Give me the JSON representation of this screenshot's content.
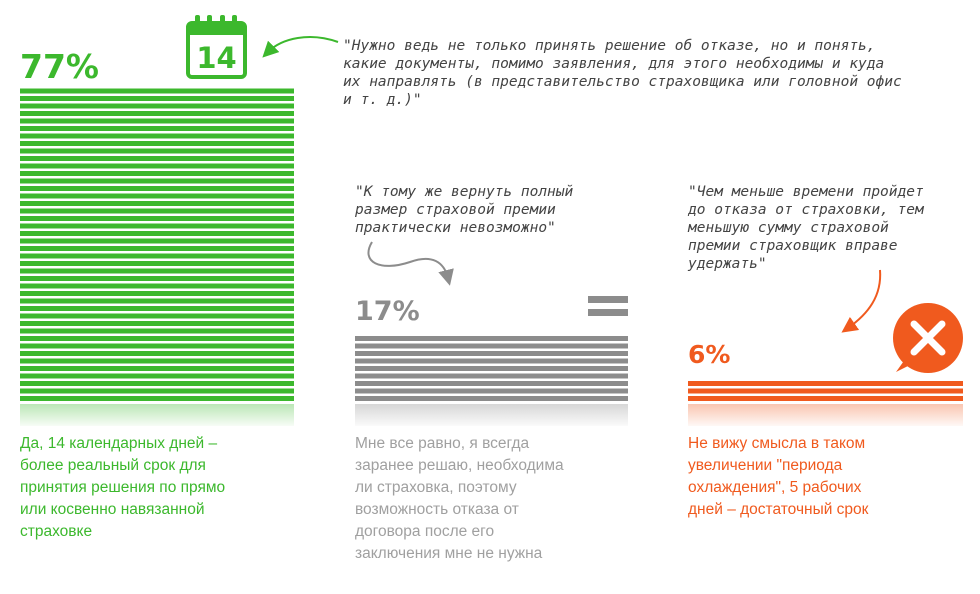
{
  "chart_data": {
    "type": "bar",
    "title": "",
    "categories": [
      "Да, 14 календарных дней – более реальный срок для принятия решения по прямо или косвенно навязанной страховке",
      "Мне все равно, я всегда заранее решаю, необходима ли страховка, поэтому возможность отказа от договора после его заключения мне не нужна",
      "Не вижу смысла в таком увеличении \"периода охлаждения\", 5 рабочих дней – достаточный срок"
    ],
    "values": [
      77,
      17,
      6
    ],
    "value_labels": [
      "77%",
      "17%",
      "6%"
    ],
    "unit": "%",
    "ylim": [
      0,
      77
    ],
    "grid": false,
    "legend": "none",
    "colors": [
      "#3cb82d",
      "#8c8c8c",
      "#f05a1e"
    ],
    "quotes": [
      [
        "\"Нужно ведь не только принять решение об отказе, но и понять,",
        "какие документы, помимо заявления, для этого необходимы и куда",
        "их направлять (в представительство страховщика или головной офис",
        "и т. д.)\""
      ],
      [
        "\"К тому же вернуть полный",
        "размер страховой премии",
        "практически невозможно\""
      ],
      [
        "\"Чем меньше времени пройдет",
        "до отказа от страховки, тем",
        "меньшую сумму страховой",
        "премии страховщик вправе",
        "удержать\""
      ]
    ],
    "descriptions": [
      [
        "Да, 14 календарных дней –",
        "более реальный срок для",
        "принятия решения по прямо",
        "или косвенно навязанной",
        "страховке"
      ],
      [
        "Мне все равно, я всегда",
        "заранее решаю, необходима",
        "ли страховка, поэтому",
        "возможность отказа от",
        "договора после его",
        "заключения мне не нужна"
      ],
      [
        "Не вижу смысла в таком",
        "увеличении \"периода",
        "охлаждения\", 5 рабочих",
        "дней – достаточный срок"
      ]
    ],
    "icons": {
      "calendar_number": "14",
      "calendar": "calendar-icon",
      "equals": "equals-icon",
      "cross": "cross-icon"
    }
  }
}
